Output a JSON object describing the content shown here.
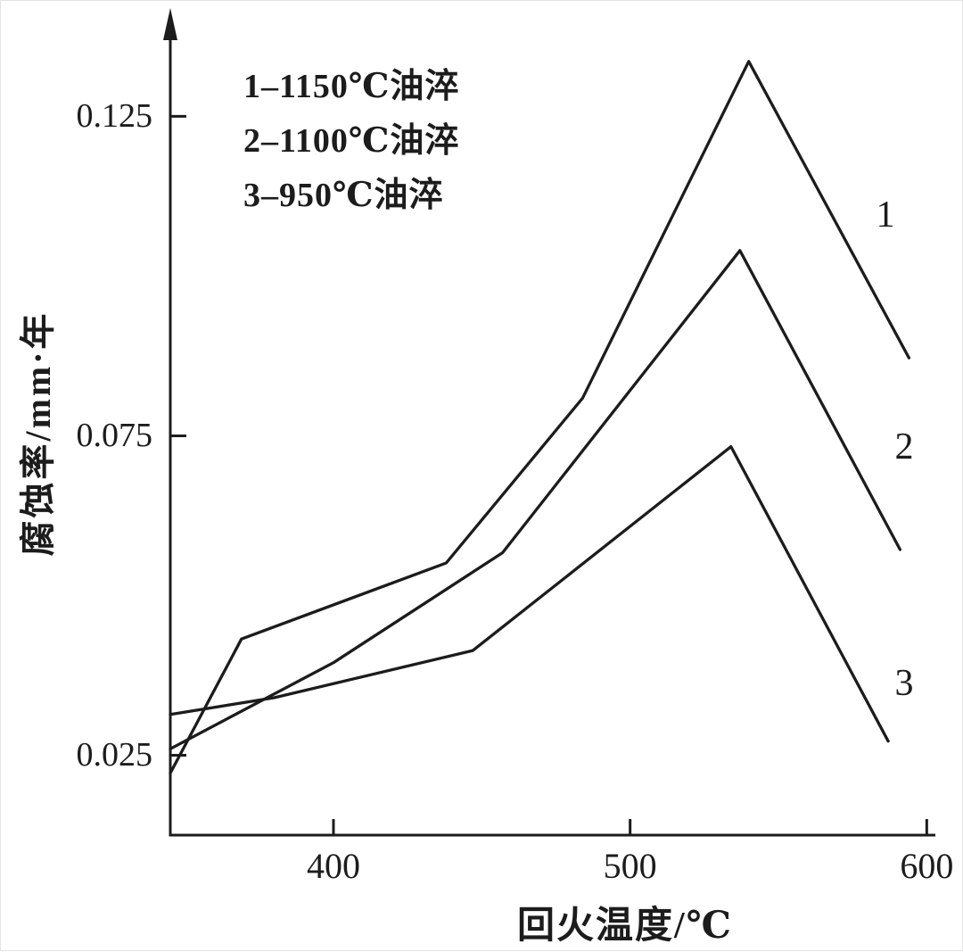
{
  "figure": {
    "background": "#ffffff",
    "ink": "#1c1c1c",
    "border_color": "#e3e3e3"
  },
  "chart_data": {
    "type": "line",
    "title": "",
    "xlabel": "回火温度/℃",
    "ylabel": "腐蚀率/mm·年",
    "xlim": [
      345,
      602
    ],
    "ylim": [
      0.0125,
      0.14
    ],
    "x_ticks": [
      400,
      500,
      600
    ],
    "y_ticks": [
      0.025,
      0.075,
      0.125
    ],
    "grid": false,
    "legend_position": "top-left-inside",
    "legend": [
      "1–1150℃油淬",
      "2–1100℃油淬",
      "3–950℃油淬"
    ],
    "series": [
      {
        "name": "1",
        "label": "1–1150℃油淬",
        "points": [
          [
            345,
            0.0222
          ],
          [
            369,
            0.0432
          ],
          [
            438,
            0.0551
          ],
          [
            484,
            0.0809
          ],
          [
            540,
            0.1336
          ],
          [
            594,
            0.0872
          ]
        ]
      },
      {
        "name": "2",
        "label": "2–1100℃油淬",
        "points": [
          [
            345,
            0.026
          ],
          [
            400,
            0.0395
          ],
          [
            457,
            0.0567
          ],
          [
            537,
            0.104
          ],
          [
            591,
            0.0572
          ]
        ]
      },
      {
        "name": "3",
        "label": "3–950℃油淬",
        "points": [
          [
            345,
            0.0314
          ],
          [
            380,
            0.034
          ],
          [
            447,
            0.0414
          ],
          [
            534,
            0.0733
          ],
          [
            587,
            0.0272
          ]
        ]
      }
    ]
  }
}
